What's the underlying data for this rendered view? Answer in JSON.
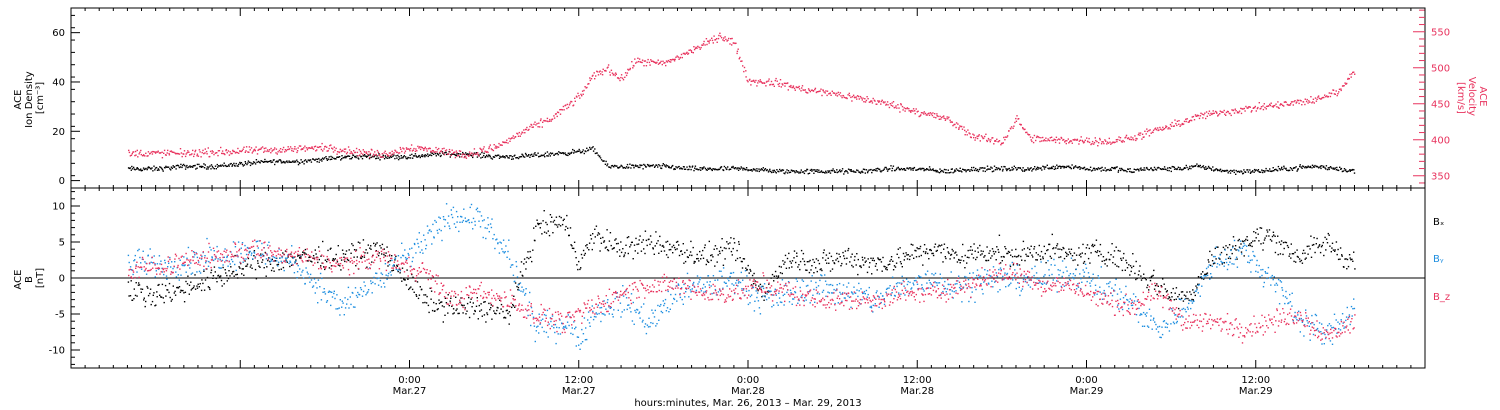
{
  "chart_data": [
    {
      "id": "top",
      "type": "scatter",
      "ylabel_lines": [
        "ACE",
        "Ion Density",
        "[cm⁻³]"
      ],
      "y2label_lines": [
        "ACE",
        "Velocity",
        "[km/s]"
      ],
      "ylim": [
        -3,
        70
      ],
      "y2lim": [
        333,
        583
      ],
      "yticks": [
        0,
        20,
        40,
        60
      ],
      "y2ticks": [
        350,
        400,
        450,
        500,
        550
      ],
      "colors": {
        "density": "#000000",
        "velocity": "#e8335e"
      },
      "series": [
        {
          "key": "density",
          "axis": "left",
          "x": [
            -20,
            -18,
            -16,
            -14,
            -12,
            -10,
            -8,
            -6,
            -4,
            -2,
            0,
            2,
            4,
            6,
            8,
            10,
            12,
            13,
            14,
            16,
            18,
            20,
            22,
            24,
            26,
            28,
            30,
            32,
            34,
            36,
            38,
            40,
            42,
            44,
            46,
            47,
            48,
            50,
            51,
            52,
            54,
            56,
            58,
            60,
            62,
            64,
            66,
            67
          ],
          "y": [
            5,
            5,
            6,
            6,
            7,
            8,
            8,
            9,
            10,
            10,
            10,
            11,
            11,
            10,
            10,
            11,
            12,
            13,
            6,
            6,
            6,
            5,
            5,
            5,
            4,
            4,
            4,
            4,
            5,
            5,
            4,
            5,
            5,
            5,
            6,
            6,
            5,
            5,
            4,
            5,
            5,
            6,
            4,
            4,
            5,
            6,
            5,
            4
          ],
          "spread": 1.5
        },
        {
          "key": "velocity",
          "axis": "right",
          "x": [
            -20,
            -16,
            -12,
            -8,
            -6,
            -4,
            -2,
            0,
            2,
            4,
            6,
            7,
            8,
            10,
            12,
            13,
            14,
            15,
            16,
            18,
            20,
            22,
            23,
            24,
            26,
            28,
            30,
            32,
            34,
            36,
            38,
            40,
            42,
            43,
            44,
            46,
            48,
            50,
            52,
            54,
            56,
            58,
            60,
            62,
            64,
            66,
            67
          ],
          "y": [
            382,
            382,
            385,
            388,
            390,
            385,
            380,
            390,
            386,
            380,
            390,
            400,
            412,
            430,
            460,
            490,
            500,
            485,
            510,
            506,
            525,
            545,
            535,
            482,
            480,
            470,
            465,
            458,
            450,
            440,
            430,
            405,
            398,
            430,
            402,
            400,
            400,
            398,
            408,
            420,
            434,
            440,
            445,
            450,
            455,
            470,
            500
          ],
          "spread": 8
        }
      ]
    },
    {
      "id": "bottom",
      "type": "scatter",
      "ylabel_lines": [
        "ACE",
        "B",
        "[nT]"
      ],
      "ylim": [
        -12.5,
        12.5
      ],
      "yticks": [
        -10,
        -5,
        0,
        5,
        10
      ],
      "zero_line": true,
      "legend": [
        {
          "label": "Bₓ",
          "key": "bx"
        },
        {
          "label": "Bᵧ",
          "key": "by"
        },
        {
          "label": "B_z",
          "key": "bz"
        }
      ],
      "colors": {
        "bx": "#000000",
        "by": "#1f8fe0",
        "bz": "#e8335e"
      },
      "series": [
        {
          "key": "bx",
          "x": [
            -20,
            -17,
            -14,
            -11,
            -8,
            -5,
            -2,
            1,
            3,
            5,
            7,
            9,
            11,
            12,
            13,
            15,
            17,
            19,
            21,
            23,
            25,
            27,
            29,
            31,
            33,
            35,
            37,
            39,
            41,
            43,
            45,
            47,
            49,
            51,
            53,
            55,
            57,
            59,
            61,
            63,
            65,
            67
          ],
          "y": [
            -2,
            -2,
            0,
            2,
            3,
            3,
            4,
            -3,
            -4,
            -4,
            -5,
            7,
            8,
            2,
            6,
            4,
            5,
            4,
            3,
            4,
            -2,
            3,
            2,
            3,
            2,
            3,
            4,
            3,
            4,
            3,
            4,
            3,
            4,
            2,
            -1,
            -3,
            3,
            5,
            6,
            3,
            5,
            2
          ],
          "spread": 2.5
        },
        {
          "key": "by",
          "x": [
            -20,
            -17,
            -14,
            -11,
            -8,
            -5,
            -2,
            1,
            3,
            5,
            7,
            9,
            11,
            12,
            13,
            15,
            17,
            19,
            21,
            23,
            25,
            27,
            29,
            31,
            33,
            35,
            37,
            39,
            41,
            43,
            45,
            47,
            49,
            51,
            53,
            55,
            57,
            59,
            61,
            63,
            65,
            67
          ],
          "y": [
            2,
            2,
            3,
            4,
            2,
            -4,
            0,
            5,
            9,
            8,
            3,
            -7,
            -6,
            -8,
            -5,
            -3,
            -6,
            -2,
            -1,
            0,
            -3,
            -2,
            -1,
            -2,
            -3,
            -1,
            0,
            -1,
            0,
            0,
            0,
            1,
            -1,
            -3,
            -7,
            -4,
            2,
            4,
            0,
            -5,
            -8,
            -4
          ],
          "spread": 3
        },
        {
          "key": "bz",
          "x": [
            -20,
            -17,
            -14,
            -11,
            -8,
            -5,
            -2,
            1,
            3,
            5,
            7,
            9,
            11,
            12,
            13,
            15,
            17,
            19,
            21,
            23,
            25,
            27,
            29,
            31,
            33,
            35,
            37,
            39,
            41,
            43,
            45,
            47,
            49,
            51,
            53,
            55,
            57,
            59,
            61,
            63,
            65,
            67
          ],
          "y": [
            1,
            2,
            3,
            4,
            3,
            2,
            3,
            1,
            -3,
            -2,
            -3,
            -5,
            -6,
            -5,
            -4,
            -2,
            -1,
            -1,
            -2,
            -2,
            -1,
            -2,
            -3,
            -3,
            -3,
            -2,
            -2,
            -1,
            0,
            1,
            -1,
            -1,
            -3,
            -4,
            -2,
            -6,
            -6,
            -7,
            -6,
            -5,
            -8,
            -6
          ],
          "spread": 2.2
        }
      ]
    }
  ],
  "x_axis": {
    "xlim": [
      -24,
      72
    ],
    "ticks": [
      {
        "x": 0,
        "time": "0:00",
        "date": "Mar.27"
      },
      {
        "x": 12,
        "time": "12:00",
        "date": "Mar.27"
      },
      {
        "x": 24,
        "time": "0:00",
        "date": "Mar.28"
      },
      {
        "x": 36,
        "time": "12:00",
        "date": "Mar.28"
      },
      {
        "x": 48,
        "time": "0:00",
        "date": "Mar.29"
      },
      {
        "x": 60,
        "time": "12:00",
        "date": "Mar.29"
      }
    ],
    "minor_step": 1,
    "label": "hours:minutes, Mar. 26, 2013 – Mar. 29, 2013"
  }
}
